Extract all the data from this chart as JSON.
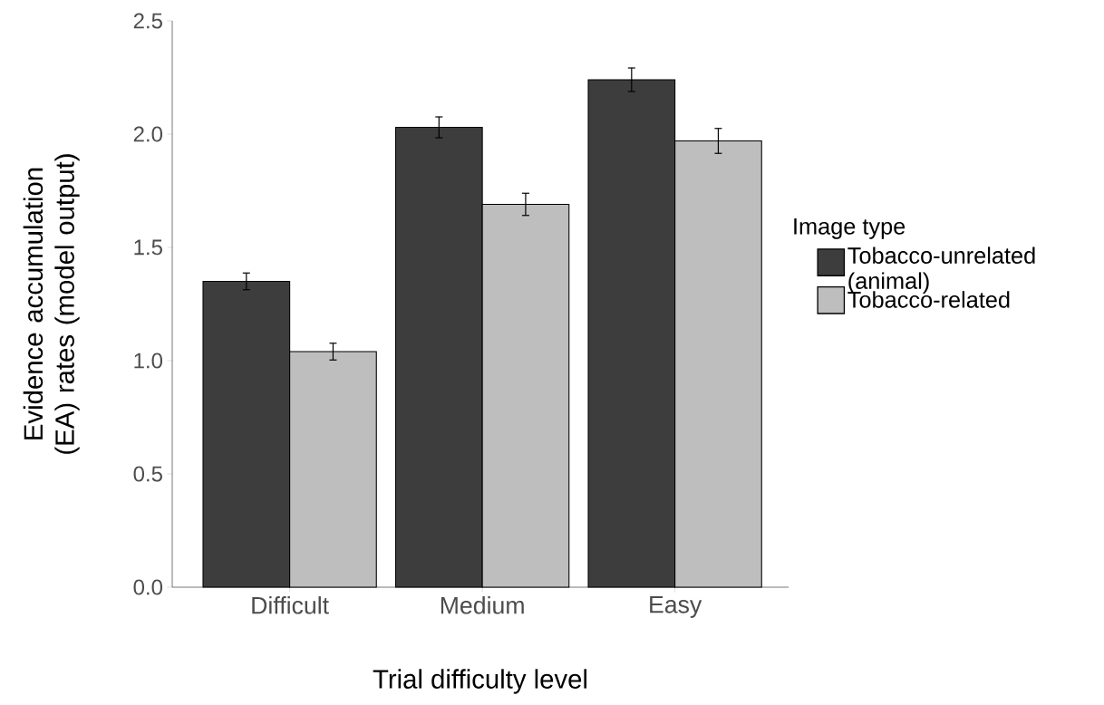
{
  "chart_data": {
    "type": "bar",
    "xlabel": "Trial difficulty level",
    "ylabel": "Evidence accumulation (EA) rates (model output)",
    "legend_title": "Image type",
    "categories": [
      "Difficult",
      "Medium",
      "Easy"
    ],
    "series": [
      {
        "name": "Tobacco-unrelated (animal)",
        "color": "#3d3d3d",
        "values": [
          1.35,
          2.03,
          2.24
        ],
        "errors": [
          0.037,
          0.046,
          0.052
        ]
      },
      {
        "name": "Tobacco-related",
        "color": "#bebebe",
        "values": [
          1.04,
          1.69,
          1.97
        ],
        "errors": [
          0.037,
          0.049,
          0.055
        ]
      }
    ],
    "ylim": [
      0,
      2.5
    ],
    "yticks": [
      {
        "value": 0,
        "label": "0.0"
      },
      {
        "value": 0.5,
        "label": "0.5"
      },
      {
        "value": 1,
        "label": "1.0"
      },
      {
        "value": 1.5,
        "label": "1.5"
      },
      {
        "value": 2,
        "label": "2.0"
      },
      {
        "value": 2.5,
        "label": "2.5"
      }
    ],
    "grid": false,
    "legend": "right"
  }
}
